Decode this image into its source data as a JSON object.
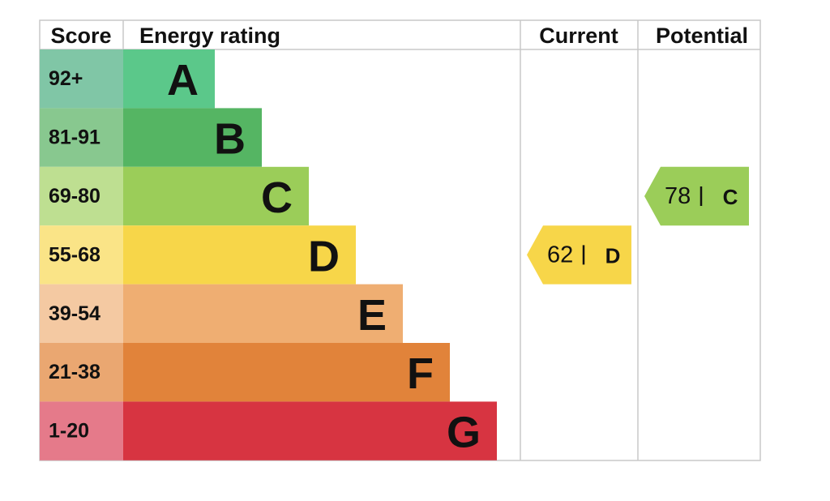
{
  "header": {
    "score": "Score",
    "rating": "Energy rating",
    "current": "Current",
    "potential": "Potential"
  },
  "bands": [
    {
      "score": "92+",
      "letter": "A",
      "color": "#5bc88a",
      "score_color": "#80c6a6"
    },
    {
      "score": "81-91",
      "letter": "B",
      "color": "#55b563",
      "score_color": "#88c88f"
    },
    {
      "score": "69-80",
      "letter": "C",
      "color": "#9bcd59",
      "score_color": "#bedf91"
    },
    {
      "score": "55-68",
      "letter": "D",
      "color": "#f7d649",
      "score_color": "#fae487"
    },
    {
      "score": "39-54",
      "letter": "E",
      "color": "#efae72",
      "score_color": "#f4c9a2"
    },
    {
      "score": "21-38",
      "letter": "F",
      "color": "#e1833a",
      "score_color": "#eaa771"
    },
    {
      "score": "1-20",
      "letter": "G",
      "color": "#d73441",
      "score_color": "#e57a8a"
    }
  ],
  "current": {
    "value": 62,
    "letter": "D"
  },
  "potential": {
    "value": 78,
    "letter": "C"
  }
}
